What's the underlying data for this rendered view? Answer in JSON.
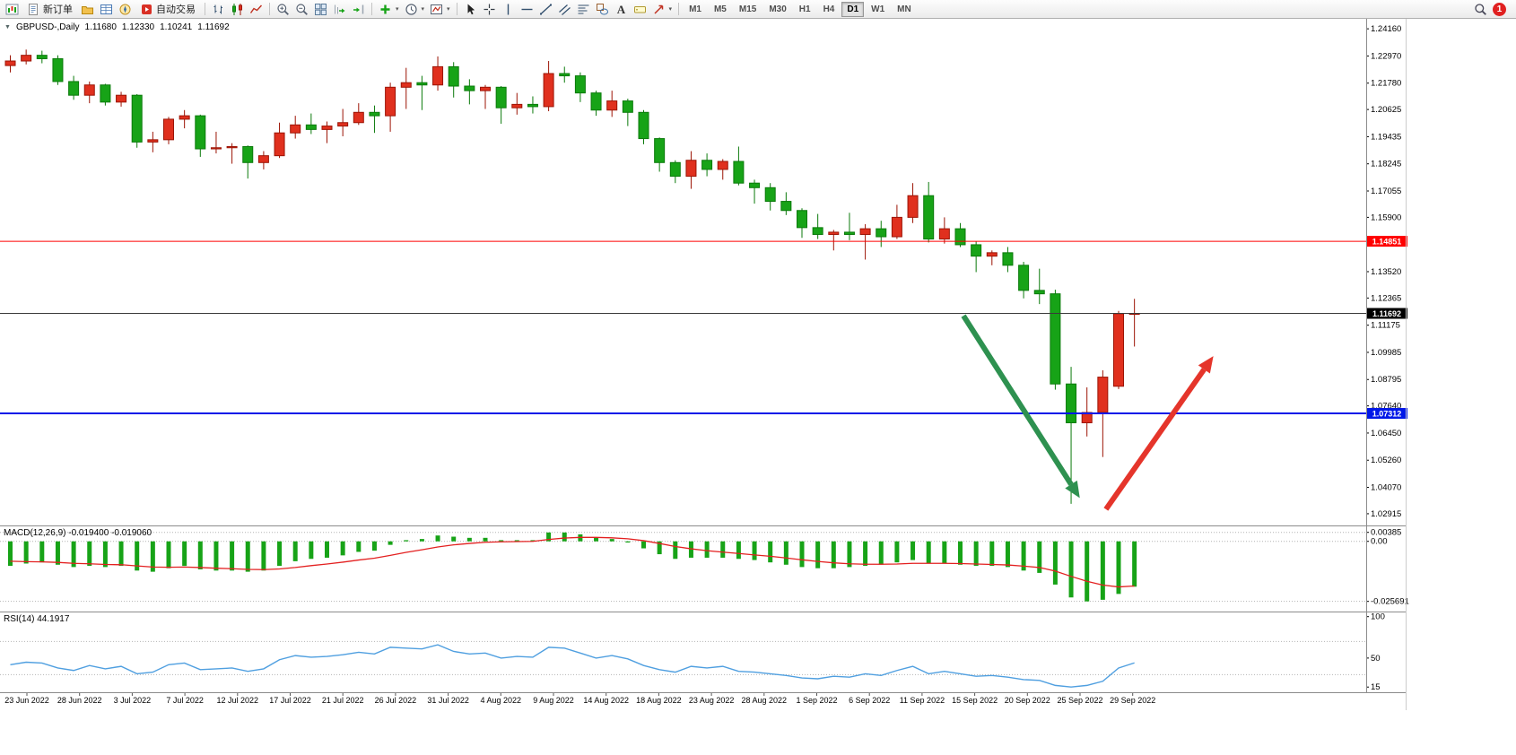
{
  "toolbar": {
    "new_order_label": "新订单",
    "autotrading_label": "自动交易",
    "caret_glyph": "▾",
    "items": [
      {
        "name": "new-chart"
      },
      {
        "name": "new-order",
        "label": "新订单"
      },
      {
        "name": "profiles"
      },
      {
        "name": "market-watch"
      },
      {
        "name": "navigator"
      },
      {
        "name": "autotrading",
        "label": "自动交易"
      },
      {
        "sep": true
      },
      {
        "name": "bar-chart"
      },
      {
        "name": "candlestick-chart"
      },
      {
        "name": "line-chart"
      },
      {
        "sep": true
      },
      {
        "name": "zoom-in"
      },
      {
        "name": "zoom-out"
      },
      {
        "name": "tile-windows"
      },
      {
        "name": "auto-scroll"
      },
      {
        "name": "chart-shift"
      },
      {
        "sep": true
      },
      {
        "name": "add-indicator",
        "caret": true
      },
      {
        "name": "periods",
        "caret": true
      },
      {
        "name": "templates",
        "caret": true
      },
      {
        "sep": true
      },
      {
        "name": "cursor"
      },
      {
        "name": "crosshair"
      },
      {
        "name": "vertical-line"
      },
      {
        "name": "horizontal-line"
      },
      {
        "name": "trendline"
      },
      {
        "name": "channel"
      },
      {
        "name": "fibonacci"
      },
      {
        "name": "shapes"
      },
      {
        "name": "text"
      },
      {
        "name": "label"
      },
      {
        "name": "arrows",
        "caret": true
      },
      {
        "sep": true
      }
    ],
    "timeframes": [
      "M1",
      "M5",
      "M15",
      "M30",
      "H1",
      "H4",
      "D1",
      "W1",
      "MN"
    ],
    "active_timeframe": "D1",
    "notification_count": "1"
  },
  "header": {
    "collapse_glyph": "▼",
    "symbol": "GBPUSD-,Daily",
    "open": "1.11680",
    "high": "1.12330",
    "low": "1.10241",
    "close": "1.11692"
  },
  "indicators": {
    "macd_label": "MACD(12,26,9) -0.019400 -0.019060",
    "rsi_label": "RSI(14) 44.1917"
  },
  "price_scale": [
    "1.24160",
    "1.22970",
    "1.21780",
    "1.20625",
    "1.19435",
    "1.18245",
    "1.17055",
    "1.15900",
    "1.13520",
    "1.12365",
    "1.11175",
    "1.09985",
    "1.08795",
    "1.07640",
    "1.06450",
    "1.05260",
    "1.04070",
    "1.02915"
  ],
  "macd_scale": [
    "0.00385",
    "0.00",
    "-0.025691"
  ],
  "rsi_scale": [
    "100",
    "50",
    "15"
  ],
  "time_axis": [
    "23 Jun 2022",
    "28 Jun 2022",
    "3 Jul 2022",
    "7 Jul 2022",
    "12 Jul 2022",
    "17 Jul 2022",
    "21 Jul 2022",
    "26 Jul 2022",
    "31 Jul 2022",
    "4 Aug 2022",
    "9 Aug 2022",
    "14 Aug 2022",
    "18 Aug 2022",
    "23 Aug 2022",
    "28 Aug 2022",
    "1 Sep 2022",
    "6 Sep 2022",
    "11 Sep 2022",
    "15 Sep 2022",
    "20 Sep 2022",
    "25 Sep 2022",
    "29 Sep 2022"
  ],
  "chart_data": {
    "type": "candlestick",
    "title": "GBPUSD- Daily",
    "y_range": [
      1.0248,
      1.2444
    ],
    "macd_range": [
      -0.0285,
      0.0045
    ],
    "rsi_range": [
      12,
      104
    ],
    "colors": {
      "bull": "#e0301e",
      "bull_stroke": "#9c1405",
      "bear": "#17a317",
      "bear_stroke": "#0b7a0b",
      "macd_hist": "#17a317",
      "macd_signal": "#e32020",
      "rsi": "#4f9fe0"
    },
    "candles": [
      [
        1.2255,
        1.23,
        1.2225,
        1.2275
      ],
      [
        1.2275,
        1.2325,
        1.226,
        1.23
      ],
      [
        1.23,
        1.232,
        1.2265,
        1.2285
      ],
      [
        1.2285,
        1.23,
        1.217,
        1.2185
      ],
      [
        1.2185,
        1.221,
        1.2105,
        1.2125
      ],
      [
        1.2125,
        1.2185,
        1.209,
        1.217
      ],
      [
        1.217,
        1.2175,
        1.208,
        1.2095
      ],
      [
        1.2095,
        1.214,
        1.2075,
        1.2125
      ],
      [
        1.2125,
        1.213,
        1.1895,
        1.192
      ],
      [
        1.192,
        1.1965,
        1.1875,
        1.193
      ],
      [
        1.193,
        1.203,
        1.191,
        1.202
      ],
      [
        1.202,
        1.206,
        1.198,
        1.2035
      ],
      [
        1.2035,
        1.204,
        1.1855,
        1.189
      ],
      [
        1.189,
        1.1965,
        1.187,
        1.1895
      ],
      [
        1.1895,
        1.1915,
        1.1825,
        1.19
      ],
      [
        1.19,
        1.1905,
        1.176,
        1.183
      ],
      [
        1.183,
        1.188,
        1.18,
        1.186
      ],
      [
        1.186,
        1.2005,
        1.185,
        1.196
      ],
      [
        1.196,
        1.2035,
        1.1935,
        1.1995
      ],
      [
        1.1995,
        1.2045,
        1.1955,
        1.1975
      ],
      [
        1.1975,
        1.201,
        1.1915,
        1.199
      ],
      [
        1.199,
        1.2065,
        1.1945,
        1.2005
      ],
      [
        1.2005,
        1.209,
        1.1995,
        1.205
      ],
      [
        1.205,
        1.208,
        1.196,
        1.2035
      ],
      [
        1.2035,
        1.218,
        1.1965,
        1.216
      ],
      [
        1.216,
        1.2245,
        1.2065,
        1.218
      ],
      [
        1.218,
        1.221,
        1.206,
        1.217
      ],
      [
        1.217,
        1.2295,
        1.2145,
        1.225
      ],
      [
        1.225,
        1.227,
        1.2115,
        1.2165
      ],
      [
        1.2165,
        1.2195,
        1.2085,
        1.2145
      ],
      [
        1.2145,
        1.217,
        1.2065,
        1.216
      ],
      [
        1.216,
        1.2165,
        1.2,
        1.207
      ],
      [
        1.207,
        1.2135,
        1.204,
        1.2085
      ],
      [
        1.2085,
        1.212,
        1.2045,
        1.2075
      ],
      [
        1.2075,
        1.2275,
        1.2055,
        1.222
      ],
      [
        1.222,
        1.225,
        1.218,
        1.221
      ],
      [
        1.221,
        1.2225,
        1.2095,
        1.2135
      ],
      [
        1.2135,
        1.2145,
        1.2035,
        1.206
      ],
      [
        1.206,
        1.2145,
        1.203,
        1.21
      ],
      [
        1.21,
        1.211,
        1.199,
        1.205
      ],
      [
        1.205,
        1.206,
        1.191,
        1.1935
      ],
      [
        1.1935,
        1.194,
        1.179,
        1.183
      ],
      [
        1.183,
        1.184,
        1.174,
        1.177
      ],
      [
        1.177,
        1.188,
        1.1715,
        1.184
      ],
      [
        1.184,
        1.187,
        1.177,
        1.18
      ],
      [
        1.18,
        1.1845,
        1.1755,
        1.1835
      ],
      [
        1.1835,
        1.19,
        1.173,
        1.174
      ],
      [
        1.174,
        1.1755,
        1.165,
        1.172
      ],
      [
        1.172,
        1.174,
        1.162,
        1.166
      ],
      [
        1.166,
        1.17,
        1.16,
        1.162
      ],
      [
        1.162,
        1.163,
        1.15,
        1.1545
      ],
      [
        1.1545,
        1.1605,
        1.1495,
        1.1515
      ],
      [
        1.1515,
        1.1535,
        1.1445,
        1.1525
      ],
      [
        1.1525,
        1.161,
        1.149,
        1.1515
      ],
      [
        1.1515,
        1.156,
        1.1405,
        1.154
      ],
      [
        1.154,
        1.1575,
        1.146,
        1.1505
      ],
      [
        1.1505,
        1.1645,
        1.1495,
        1.159
      ],
      [
        1.159,
        1.174,
        1.1565,
        1.1685
      ],
      [
        1.1685,
        1.1745,
        1.148,
        1.1495
      ],
      [
        1.1495,
        1.159,
        1.1475,
        1.154
      ],
      [
        1.154,
        1.1565,
        1.146,
        1.147
      ],
      [
        1.147,
        1.1485,
        1.135,
        1.142
      ],
      [
        1.142,
        1.1445,
        1.138,
        1.1435
      ],
      [
        1.1435,
        1.146,
        1.135,
        1.138
      ],
      [
        1.138,
        1.1395,
        1.1235,
        1.127
      ],
      [
        1.127,
        1.1365,
        1.121,
        1.1255
      ],
      [
        1.1255,
        1.1273,
        1.0835,
        1.086
      ],
      [
        1.086,
        1.0935,
        1.0335,
        1.069
      ],
      [
        1.069,
        1.0845,
        1.063,
        1.0735
      ],
      [
        1.0735,
        1.092,
        1.054,
        1.089
      ],
      [
        1.085,
        1.118,
        1.0838,
        1.1168
      ],
      [
        1.1168,
        1.1233,
        1.1024,
        1.1169
      ]
    ],
    "hlines": [
      {
        "price": 1.14851,
        "label": "1.14851",
        "color": "#ff0000",
        "width": 1
      },
      {
        "price": 1.07312,
        "label": "1.07312",
        "color": "#0018e8",
        "width": 2
      },
      {
        "price": 1.11692,
        "label": "1.11692",
        "color": "#3a3a3a",
        "width": 1,
        "label_bg": "#000000"
      }
    ],
    "arrows": [
      {
        "name": "bearish-arrow",
        "color": "#2e9150",
        "from_index": 60.2,
        "from_price": 1.1159,
        "to_index": 67.0,
        "to_price": 1.042,
        "width": 6
      },
      {
        "name": "bullish-arrow",
        "color": "#e5352b",
        "from_index": 69.2,
        "from_price": 1.0311,
        "to_index": 75.4,
        "to_price": 1.0924,
        "width": 6
      }
    ],
    "macd": {
      "params": "12,26,9",
      "hist": [
        -0.0105,
        -0.0095,
        -0.009,
        -0.01,
        -0.011,
        -0.0105,
        -0.011,
        -0.0105,
        -0.0125,
        -0.013,
        -0.0115,
        -0.0105,
        -0.012,
        -0.0125,
        -0.0125,
        -0.013,
        -0.0125,
        -0.0105,
        -0.0085,
        -0.0075,
        -0.007,
        -0.006,
        -0.0045,
        -0.004,
        -0.0015,
        0.0005,
        0.001,
        0.0025,
        0.002,
        0.0015,
        0.0015,
        0.0005,
        0.0005,
        0.0005,
        0.0038,
        0.0038,
        0.003,
        0.0015,
        0.001,
        -0.0005,
        -0.003,
        -0.0055,
        -0.0075,
        -0.007,
        -0.007,
        -0.007,
        -0.0075,
        -0.008,
        -0.009,
        -0.01,
        -0.011,
        -0.0115,
        -0.0115,
        -0.011,
        -0.0105,
        -0.01,
        -0.009,
        -0.008,
        -0.0095,
        -0.0095,
        -0.01,
        -0.0105,
        -0.0105,
        -0.011,
        -0.0125,
        -0.0135,
        -0.0185,
        -0.024,
        -0.0257,
        -0.025,
        -0.0225,
        -0.0194
      ],
      "signal": [
        -0.0085,
        -0.0087,
        -0.0088,
        -0.009,
        -0.0094,
        -0.0096,
        -0.0099,
        -0.01,
        -0.0105,
        -0.011,
        -0.0111,
        -0.011,
        -0.0112,
        -0.0115,
        -0.0117,
        -0.012,
        -0.0121,
        -0.0118,
        -0.0112,
        -0.0104,
        -0.0097,
        -0.0089,
        -0.008,
        -0.0072,
        -0.006,
        -0.0047,
        -0.0036,
        -0.0024,
        -0.0015,
        -0.0009,
        -0.0004,
        -0.0002,
        -0.0001,
        0.0,
        0.0008,
        0.0014,
        0.0017,
        0.0017,
        0.0015,
        0.0011,
        0.0003,
        -0.0009,
        -0.0022,
        -0.0032,
        -0.004,
        -0.0046,
        -0.0052,
        -0.0058,
        -0.0064,
        -0.0071,
        -0.0079,
        -0.0086,
        -0.0092,
        -0.0096,
        -0.0098,
        -0.0098,
        -0.0097,
        -0.0094,
        -0.0094,
        -0.0094,
        -0.0095,
        -0.0097,
        -0.0099,
        -0.0101,
        -0.0106,
        -0.0112,
        -0.0127,
        -0.015,
        -0.0171,
        -0.0187,
        -0.0195,
        -0.0191
      ]
    },
    "rsi": {
      "period": 14,
      "levels": [
        70,
        30
      ],
      "values": [
        42,
        45,
        44,
        38,
        35,
        41,
        37,
        40,
        31,
        33,
        42,
        44,
        36,
        37,
        38,
        34,
        37,
        48,
        53,
        51,
        52,
        54,
        57,
        55,
        63,
        62,
        61,
        66,
        58,
        55,
        56,
        50,
        52,
        51,
        63,
        62,
        56,
        50,
        53,
        49,
        41,
        36,
        33,
        40,
        38,
        40,
        34,
        33,
        31,
        29,
        26,
        25,
        28,
        27,
        31,
        29,
        35,
        40,
        31,
        34,
        31,
        28,
        29,
        27,
        24,
        23,
        17,
        15,
        17,
        22,
        38,
        44.19
      ]
    }
  }
}
